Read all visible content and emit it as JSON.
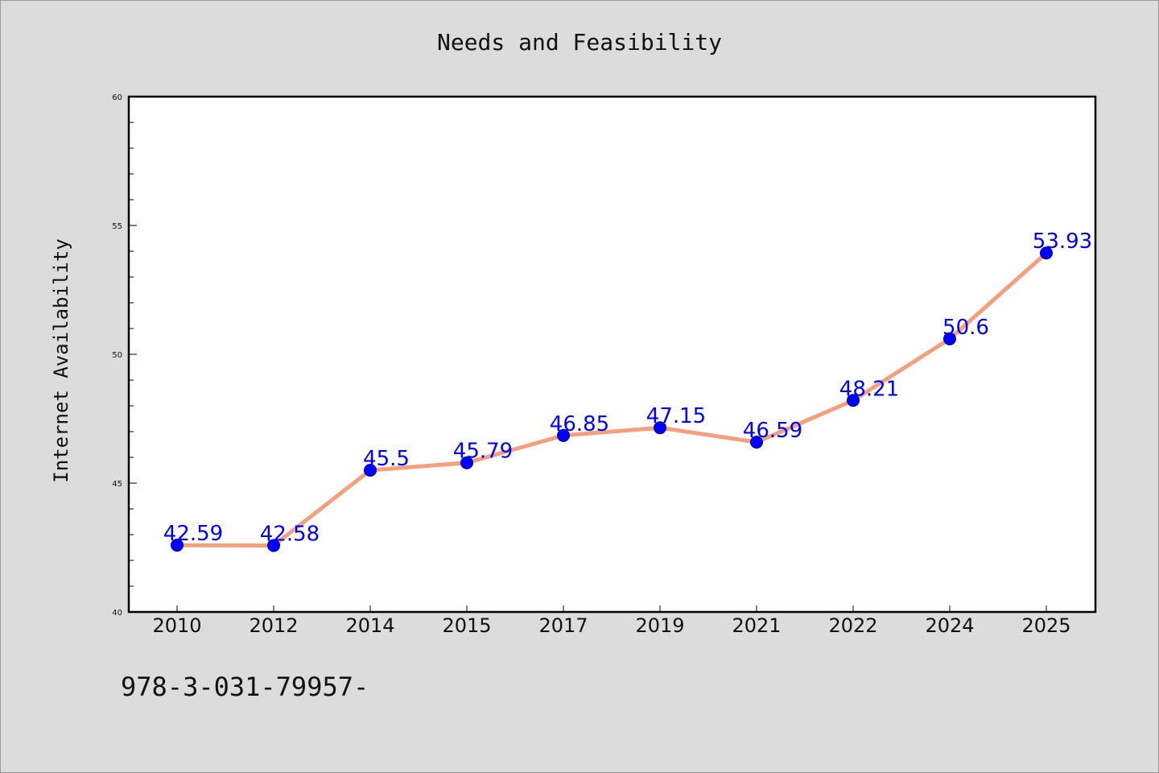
{
  "chart_data": {
    "type": "line",
    "title": "Needs and Feasibility",
    "xlabel": "",
    "ylabel": "Internet Availability",
    "categories": [
      "2010",
      "2012",
      "2014",
      "2015",
      "2017",
      "2019",
      "2021",
      "2022",
      "2024",
      "2025"
    ],
    "series": [
      {
        "values": [
          42.59,
          42.58,
          45.5,
          45.79,
          46.85,
          47.15,
          46.59,
          48.21,
          50.6,
          53.93
        ],
        "data_labels": [
          "42.59",
          "42.58",
          "45.5",
          "45.79",
          "46.85",
          "47.15",
          "46.59",
          "48.21",
          "50.6",
          "53.93"
        ]
      }
    ],
    "ylim": [
      40,
      60
    ],
    "y_ticks": [
      "40",
      "45",
      "50",
      "55",
      "60"
    ],
    "grid": false,
    "legend": "none",
    "colors": {
      "line": "#f4a07f",
      "marker": "#0000ff",
      "marker_edge": "#00008b",
      "data_label": "#0000ff",
      "background": "#dcdcdc",
      "plot_area": "#ffffff"
    }
  },
  "footer_text": "978-3-031-79957-"
}
